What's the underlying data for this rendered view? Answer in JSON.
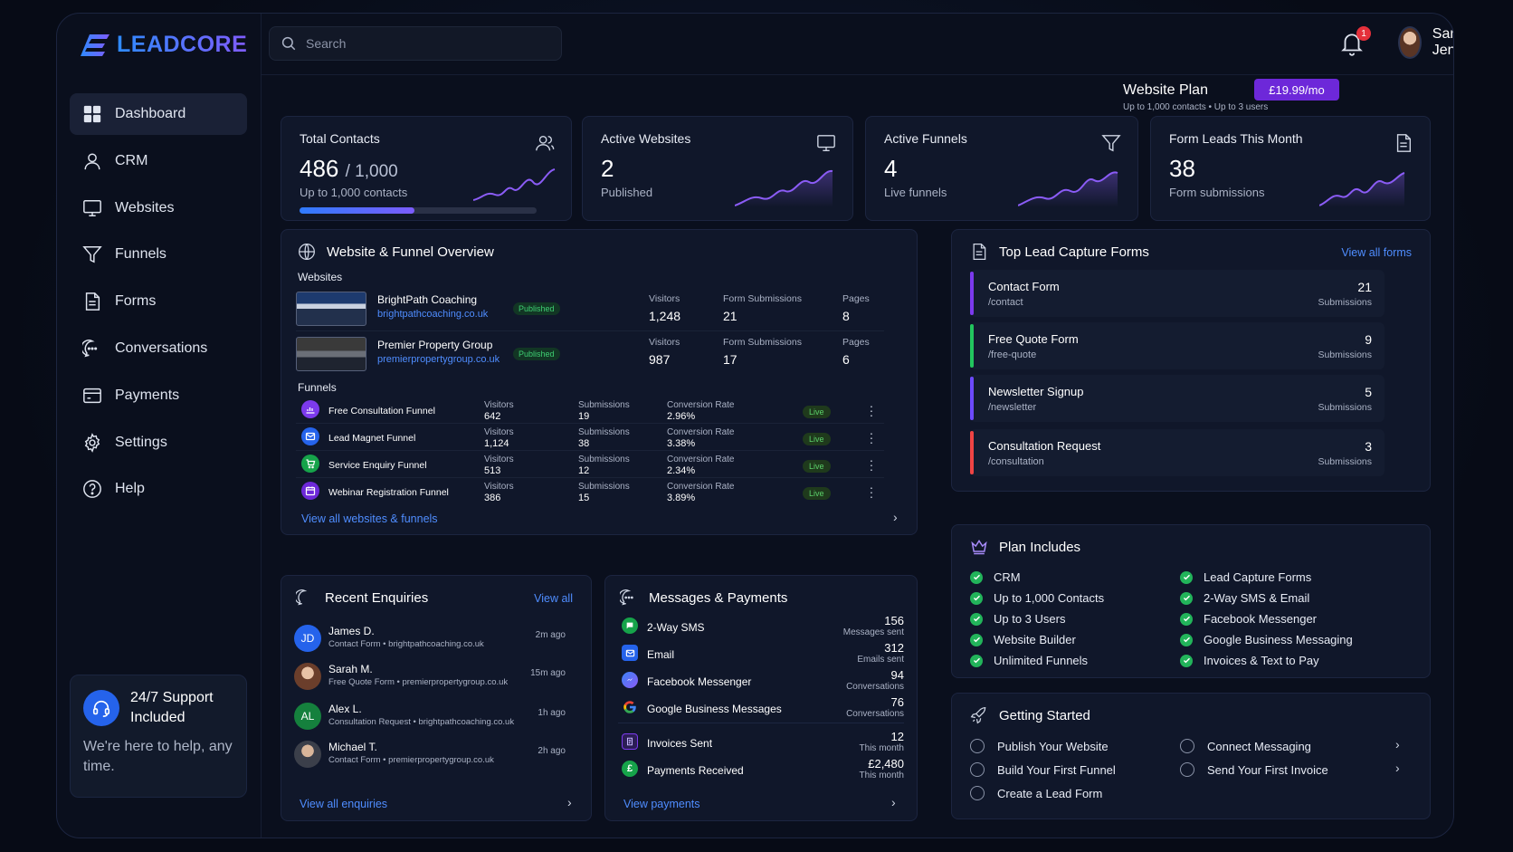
{
  "brand": {
    "name": "LEADCORE"
  },
  "search": {
    "placeholder": "Search"
  },
  "notifications": {
    "count": "1"
  },
  "user": {
    "name": "Sarah Jenkins"
  },
  "nav": [
    {
      "label": "Dashboard",
      "icon": "grid-icon"
    },
    {
      "label": "CRM",
      "icon": "user-icon"
    },
    {
      "label": "Websites",
      "icon": "monitor-icon"
    },
    {
      "label": "Funnels",
      "icon": "funnel-icon"
    },
    {
      "label": "Forms",
      "icon": "document-icon"
    },
    {
      "label": "Conversations",
      "icon": "chat-icon"
    },
    {
      "label": "Payments",
      "icon": "card-icon"
    },
    {
      "label": "Settings",
      "icon": "gear-icon"
    },
    {
      "label": "Help",
      "icon": "help-icon"
    }
  ],
  "support": {
    "title": "24/7 Support Included",
    "subtitle": "We're here to help, any time."
  },
  "plan": {
    "title": "Website Plan",
    "limits": "Up to 1,000 contacts  •  Up to 3 users",
    "price": "£19.99/mo"
  },
  "stats": [
    {
      "label": "Total Contacts",
      "value": "486",
      "value_suffix": "/ 1,000",
      "sub": "Up to 1,000 contacts",
      "progress": 0.486
    },
    {
      "label": "Active Websites",
      "value": "2",
      "sub": "Published"
    },
    {
      "label": "Active Funnels",
      "value": "4",
      "sub": "Live funnels"
    },
    {
      "label": "Form Leads This Month",
      "value": "38",
      "sub": "Form submissions"
    }
  ],
  "overview": {
    "title": "Website & Funnel Overview",
    "websites_label": "Websites",
    "funnels_label": "Funnels",
    "websites": [
      {
        "name": "BrightPath Coaching",
        "url": "brightpathcoaching.co.uk",
        "status": "Published",
        "visitors_label": "Visitors",
        "visitors": "1,248",
        "subs_label": "Form Submissions",
        "subs": "21",
        "pages_label": "Pages",
        "pages": "8"
      },
      {
        "name": "Premier Property Group",
        "url": "premierpropertygroup.co.uk",
        "status": "Published",
        "visitors_label": "Visitors",
        "visitors": "987",
        "subs_label": "Form Submissions",
        "subs": "17",
        "pages_label": "Pages",
        "pages": "6"
      }
    ],
    "funnels": [
      {
        "name": "Free Consultation Funnel",
        "visitors": "642",
        "subs": "19",
        "rate": "2.96%",
        "status": "Live",
        "color": "#7c3aed"
      },
      {
        "name": "Lead Magnet Funnel",
        "visitors": "1,124",
        "subs": "38",
        "rate": "3.38%",
        "status": "Live",
        "color": "#2563eb"
      },
      {
        "name": "Service Enquiry Funnel",
        "visitors": "513",
        "subs": "12",
        "rate": "2.34%",
        "status": "Live",
        "color": "#16a34a"
      },
      {
        "name": "Webinar Registration Funnel",
        "visitors": "386",
        "subs": "15",
        "rate": "3.89%",
        "status": "Live",
        "color": "#6d28d9"
      }
    ],
    "funnel_labels": {
      "visitors": "Visitors",
      "subs": "Submissions",
      "rate": "Conversion Rate"
    },
    "view_all": "View all websites & funnels"
  },
  "forms": {
    "title": "Top Lead Capture Forms",
    "view_all": "View all forms",
    "sub_label": "Submissions",
    "items": [
      {
        "name": "Contact Form",
        "path": "/contact",
        "count": "21",
        "color": "#7c3aed"
      },
      {
        "name": "Free Quote Form",
        "path": "/free-quote",
        "count": "9",
        "color": "#22c55e"
      },
      {
        "name": "Newsletter Signup",
        "path": "/newsletter",
        "count": "5",
        "color": "#6d4aff"
      },
      {
        "name": "Consultation Request",
        "path": "/consultation",
        "count": "3",
        "color": "#ef4444"
      }
    ]
  },
  "plan_includes": {
    "title": "Plan Includes",
    "left": [
      "CRM",
      "Up to 1,000 Contacts",
      "Up to 3 Users",
      "Website Builder",
      "Unlimited Funnels"
    ],
    "right": [
      "Lead Capture Forms",
      "2-Way SMS & Email",
      "Facebook Messenger",
      "Google Business Messaging",
      "Invoices & Text to Pay"
    ]
  },
  "getting_started": {
    "title": "Getting Started",
    "left": [
      "Publish Your Website",
      "Build Your First Funnel",
      "Create a Lead Form"
    ],
    "right": [
      "Connect Messaging",
      "Send Your First Invoice"
    ]
  },
  "enquiries": {
    "title": "Recent Enquiries",
    "view_all": "View all",
    "footer": "View all enquiries",
    "items": [
      {
        "initials": "JD",
        "name": "James D.",
        "form": "Contact Form",
        "site": "brightpathcoaching.co.uk",
        "time": "2m ago",
        "color": "#2563eb"
      },
      {
        "initials": "",
        "name": "Sarah M.",
        "form": "Free Quote Form",
        "site": "premierpropertygroup.co.uk",
        "time": "15m ago",
        "color": "#8a5a45"
      },
      {
        "initials": "AL",
        "name": "Alex L.",
        "form": "Consultation Request",
        "site": "brightpathcoaching.co.uk",
        "time": "1h ago",
        "color": "#15803d"
      },
      {
        "initials": "",
        "name": "Michael T.",
        "form": "Contact Form",
        "site": "premierpropertygroup.co.uk",
        "time": "2h ago",
        "color": "#6b4a3a"
      }
    ]
  },
  "messages": {
    "title": "Messages & Payments",
    "footer": "View payments",
    "items": [
      {
        "name": "2-Way SMS",
        "value": "156",
        "label": "Messages sent",
        "color": "#16a34a"
      },
      {
        "name": "Email",
        "value": "312",
        "label": "Emails sent",
        "color": "#2563eb"
      },
      {
        "name": "Facebook Messenger",
        "value": "94",
        "label": "Conversations",
        "color": "#3b82f6"
      },
      {
        "name": "Google Business Messages",
        "value": "76",
        "label": "Conversations",
        "color": "#ffffff"
      },
      {
        "name": "Invoices Sent",
        "value": "12",
        "label": "This month",
        "color": "#6d28d9"
      },
      {
        "name": "Payments Received",
        "value": "£2,480",
        "label": "This month",
        "color": "#16a34a"
      }
    ]
  }
}
